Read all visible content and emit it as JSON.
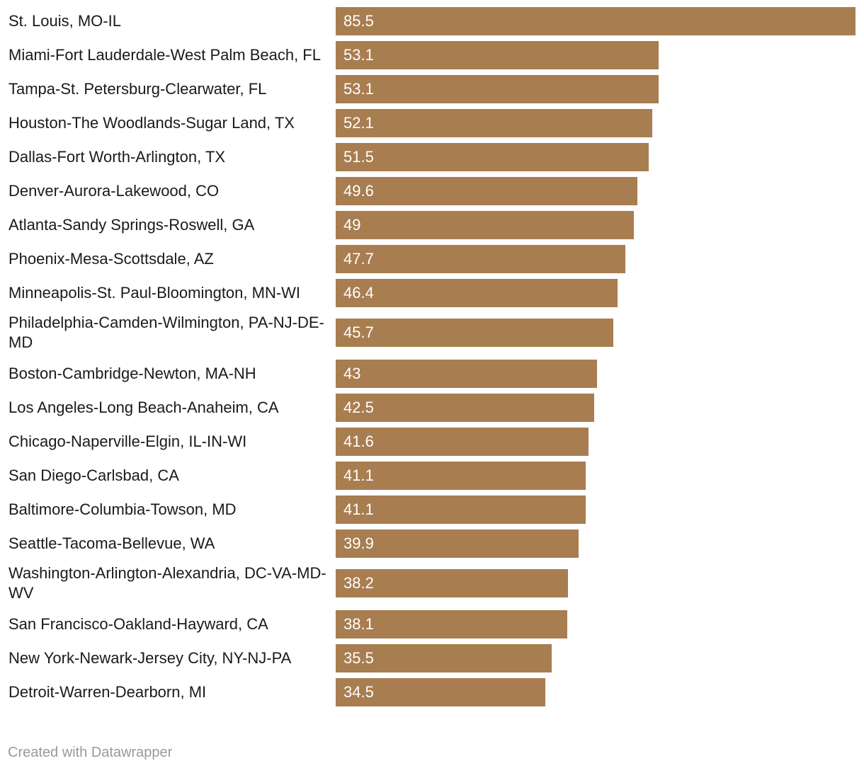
{
  "chart_data": {
    "type": "bar",
    "orientation": "horizontal",
    "categories": [
      "St. Louis, MO-IL",
      "Miami-Fort Lauderdale-West Palm Beach, FL",
      "Tampa-St. Petersburg-Clearwater, FL",
      "Houston-The Woodlands-Sugar Land, TX",
      "Dallas-Fort Worth-Arlington, TX",
      "Denver-Aurora-Lakewood, CO",
      "Atlanta-Sandy Springs-Roswell, GA",
      "Phoenix-Mesa-Scottsdale, AZ",
      "Minneapolis-St. Paul-Bloomington, MN-WI",
      "Philadelphia-Camden-Wilmington, PA-NJ-DE-MD",
      "Boston-Cambridge-Newton, MA-NH",
      "Los Angeles-Long Beach-Anaheim, CA",
      "Chicago-Naperville-Elgin, IL-IN-WI",
      "San Diego-Carlsbad, CA",
      "Baltimore-Columbia-Towson, MD",
      "Seattle-Tacoma-Bellevue, WA",
      "Washington-Arlington-Alexandria, DC-VA-MD-WV",
      "San Francisco-Oakland-Hayward, CA",
      "New York-Newark-Jersey City, NY-NJ-PA",
      "Detroit-Warren-Dearborn, MI"
    ],
    "values": [
      85.5,
      53.1,
      53.1,
      52.1,
      51.5,
      49.6,
      49,
      47.7,
      46.4,
      45.7,
      43,
      42.5,
      41.6,
      41.1,
      41.1,
      39.9,
      38.2,
      38.1,
      35.5,
      34.5
    ],
    "value_labels": [
      "85.5",
      "53.1",
      "53.1",
      "52.1",
      "51.5",
      "49.6",
      "49",
      "47.7",
      "46.4",
      "45.7",
      "43",
      "42.5",
      "41.6",
      "41.1",
      "41.1",
      "39.9",
      "38.2",
      "38.1",
      "35.5",
      "34.5"
    ],
    "xlim": [
      0,
      85.5
    ],
    "bar_color": "#a87d50",
    "value_label_color": "#ffffff",
    "grid": false,
    "legend": "none"
  },
  "footer": {
    "credit": "Created with Datawrapper"
  }
}
